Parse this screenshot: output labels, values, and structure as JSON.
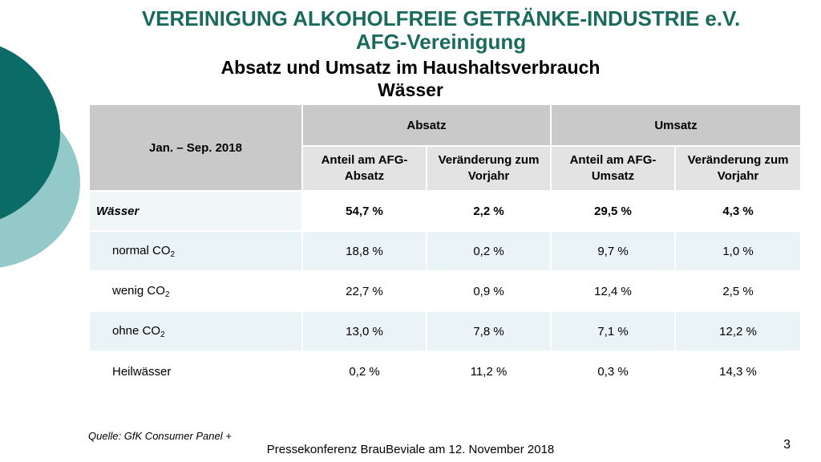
{
  "header": {
    "org_name": "VEREINIGUNG ALKOHOLFREIE GETRÄNKE-INDUSTRIE e.V.",
    "org_short": "AFG-Vereinigung",
    "subtitle": "Absatz und Umsatz im Haushaltsverbrauch",
    "category": "Wässer"
  },
  "table": {
    "period": "Jan. – Sep. 2018",
    "group_absatz": "Absatz",
    "group_umsatz": "Umsatz",
    "col_share_absatz_l1": "Anteil am AFG-",
    "col_share_absatz_l2": "Absatz",
    "col_change_absatz_l1": "Veränderung zum",
    "col_change_absatz_l2": "Vorjahr",
    "col_share_umsatz_l1": "Anteil am AFG-",
    "col_share_umsatz_l2": "Umsatz",
    "col_change_umsatz_l1": "Veränderung zum",
    "col_change_umsatz_l2": "Vorjahr",
    "rows": [
      {
        "label": "Wässer",
        "sub": "",
        "absatz_share": "54,7 %",
        "absatz_change": "2,2 %",
        "umsatz_share": "29,5 %",
        "umsatz_change": "4,3 %"
      },
      {
        "label": "normal CO",
        "sub": "2",
        "absatz_share": "18,8 %",
        "absatz_change": "0,2 %",
        "umsatz_share": "9,7 %",
        "umsatz_change": "1,0 %"
      },
      {
        "label": "wenig CO",
        "sub": "2",
        "absatz_share": "22,7 %",
        "absatz_change": "0,9 %",
        "umsatz_share": "12,4 %",
        "umsatz_change": "2,5 %"
      },
      {
        "label": "ohne CO",
        "sub": "2",
        "absatz_share": "13,0 %",
        "absatz_change": "7,8 %",
        "umsatz_share": "7,1 %",
        "umsatz_change": "12,2 %"
      },
      {
        "label": "Heilwässer",
        "sub": "",
        "absatz_share": "0,2 %",
        "absatz_change": "11,2 %",
        "umsatz_share": "0,3 %",
        "umsatz_change": "14,3 %"
      }
    ]
  },
  "footer": {
    "source": "Quelle: GfK Consumer Panel +",
    "event": "Pressekonferenz BrauBeviale am 12. November 2018",
    "page_number": "3"
  },
  "colors": {
    "title_green": "#1a6b5c",
    "deco_dark": "#0b6b66",
    "deco_light": "#93c9c8",
    "header_grey": "#c9c9c9",
    "subheader_grey": "#e3e3e3",
    "row_tint": "#eaf3f5"
  }
}
